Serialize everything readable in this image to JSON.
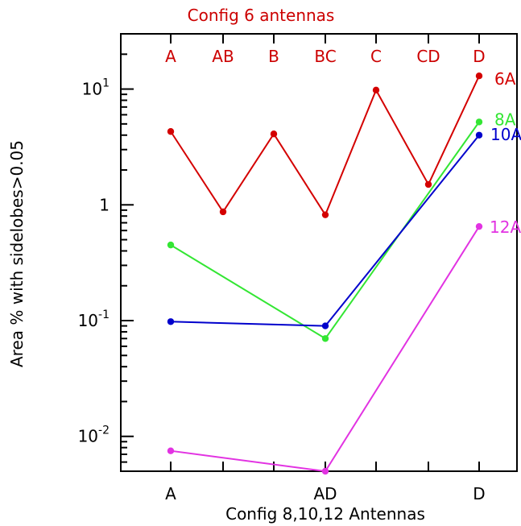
{
  "chart_data": {
    "type": "line",
    "title": "Config 6 antennas",
    "xlabel": "Config 8,10,12 Antennas",
    "ylabel": "Area % with sidelobes>0.05",
    "yscale": "log",
    "ylim": [
      0.005,
      30
    ],
    "top_categories": [
      "A",
      "AB",
      "B",
      "BC",
      "C",
      "CD",
      "D"
    ],
    "bottom_categories": [
      "A",
      "AD",
      "D"
    ],
    "y_ticks": [
      {
        "base": "10",
        "exp": "-2",
        "value": 0.01
      },
      {
        "base": "10",
        "exp": "-1",
        "value": 0.1
      },
      {
        "base": "1",
        "exp": "",
        "value": 1
      },
      {
        "base": "10",
        "exp": "1",
        "value": 10
      }
    ],
    "series": [
      {
        "name": "6A",
        "color": "#d40000",
        "x": [
          "A",
          "AB",
          "B",
          "BC",
          "C",
          "CD",
          "D"
        ],
        "values": [
          4.3,
          0.87,
          4.1,
          0.82,
          9.8,
          1.5,
          13
        ]
      },
      {
        "name": "8A",
        "color": "#33e633",
        "x": [
          "A",
          "AD",
          "D"
        ],
        "values": [
          0.45,
          0.07,
          5.2
        ]
      },
      {
        "name": "10A",
        "color": "#0000cc",
        "x": [
          "A",
          "AD",
          "D"
        ],
        "values": [
          0.098,
          0.09,
          4.0
        ]
      },
      {
        "name": "12A",
        "color": "#e233e2",
        "x": [
          "A",
          "AD",
          "D"
        ],
        "values": [
          0.0075,
          0.005,
          0.65
        ]
      }
    ],
    "grid": false
  }
}
